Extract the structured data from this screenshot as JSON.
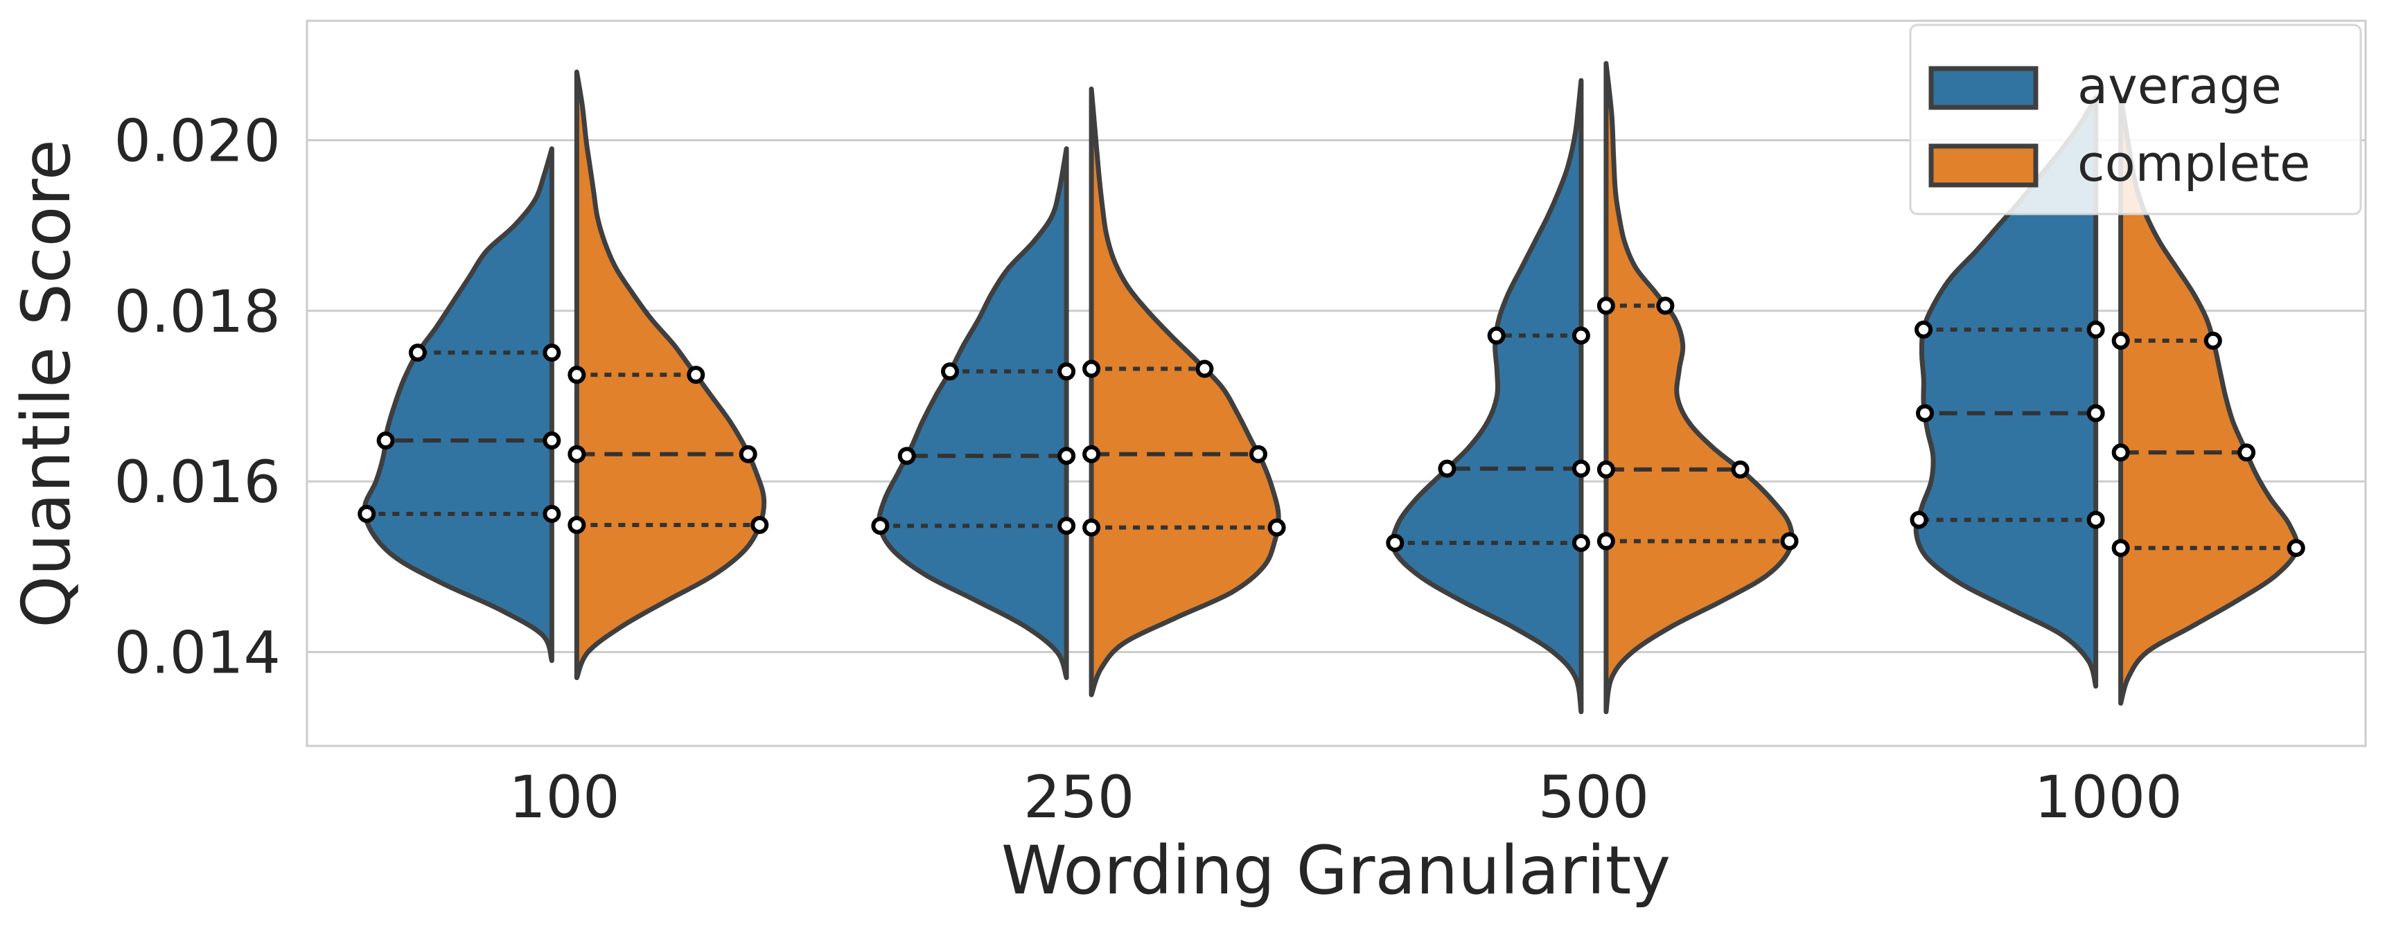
{
  "chart_data": {
    "type": "violin",
    "title": "",
    "xlabel": "Wording Granularity",
    "ylabel": "Quantile Score",
    "categories": [
      "100",
      "250",
      "500",
      "1000"
    ],
    "ylim": [
      0.0129,
      0.0214
    ],
    "yticks": [
      {
        "value": 0.014,
        "label": "0.014"
      },
      {
        "value": 0.016,
        "label": "0.016"
      },
      {
        "value": 0.018,
        "label": "0.018"
      },
      {
        "value": 0.02,
        "label": "0.020"
      }
    ],
    "grid": "horizontal",
    "legend": {
      "position": "top-right"
    },
    "series": [
      {
        "name": "average",
        "color": "#3274a1",
        "violins": [
          {
            "min": 0.0139,
            "max": 0.0199,
            "q1": 0.01562,
            "median": 0.01648,
            "q3": 0.01751,
            "profile": [
              [
                0.0139,
                0.0
              ],
              [
                0.0142,
                0.05
              ],
              [
                0.0145,
                0.28
              ],
              [
                0.0148,
                0.58
              ],
              [
                0.0151,
                0.83
              ],
              [
                0.0154,
                0.96
              ],
              [
                0.0157,
                1.0
              ],
              [
                0.016,
                0.94
              ],
              [
                0.0163,
                0.9
              ],
              [
                0.0166,
                0.88
              ],
              [
                0.0169,
                0.84
              ],
              [
                0.0172,
                0.79
              ],
              [
                0.0175,
                0.72
              ],
              [
                0.0178,
                0.62
              ],
              [
                0.0181,
                0.53
              ],
              [
                0.0184,
                0.44
              ],
              [
                0.0187,
                0.35
              ],
              [
                0.019,
                0.2
              ],
              [
                0.0193,
                0.09
              ],
              [
                0.0196,
                0.04
              ],
              [
                0.0199,
                0.0
              ]
            ]
          },
          {
            "min": 0.0137,
            "max": 0.0199,
            "q1": 0.01548,
            "median": 0.0163,
            "q3": 0.01729,
            "profile": [
              [
                0.0137,
                0.0
              ],
              [
                0.014,
                0.05
              ],
              [
                0.0143,
                0.22
              ],
              [
                0.0146,
                0.48
              ],
              [
                0.0149,
                0.75
              ],
              [
                0.0152,
                0.93
              ],
              [
                0.0155,
                1.0
              ],
              [
                0.0158,
                0.97
              ],
              [
                0.0161,
                0.9
              ],
              [
                0.0164,
                0.83
              ],
              [
                0.0167,
                0.77
              ],
              [
                0.017,
                0.7
              ],
              [
                0.0173,
                0.62
              ],
              [
                0.0176,
                0.55
              ],
              [
                0.0179,
                0.47
              ],
              [
                0.0182,
                0.4
              ],
              [
                0.0185,
                0.31
              ],
              [
                0.0188,
                0.18
              ],
              [
                0.0191,
                0.08
              ],
              [
                0.0194,
                0.04
              ],
              [
                0.0199,
                0.0
              ]
            ]
          },
          {
            "min": 0.0133,
            "max": 0.0207,
            "q1": 0.01528,
            "median": 0.01615,
            "q3": 0.01771,
            "profile": [
              [
                0.0133,
                0.0
              ],
              [
                0.0137,
                0.03
              ],
              [
                0.014,
                0.15
              ],
              [
                0.0143,
                0.37
              ],
              [
                0.0146,
                0.64
              ],
              [
                0.0149,
                0.87
              ],
              [
                0.0152,
                1.0
              ],
              [
                0.0155,
                0.98
              ],
              [
                0.0158,
                0.88
              ],
              [
                0.0161,
                0.74
              ],
              [
                0.0164,
                0.6
              ],
              [
                0.0167,
                0.5
              ],
              [
                0.017,
                0.45
              ],
              [
                0.0173,
                0.45
              ],
              [
                0.0176,
                0.46
              ],
              [
                0.0179,
                0.44
              ],
              [
                0.0182,
                0.39
              ],
              [
                0.0185,
                0.32
              ],
              [
                0.0188,
                0.25
              ],
              [
                0.0191,
                0.18
              ],
              [
                0.0194,
                0.12
              ],
              [
                0.0197,
                0.07
              ],
              [
                0.0201,
                0.03
              ],
              [
                0.0207,
                0.0
              ]
            ]
          },
          {
            "min": 0.0136,
            "max": 0.0205,
            "q1": 0.01555,
            "median": 0.0168,
            "q3": 0.01778,
            "profile": [
              [
                0.0136,
                0.0
              ],
              [
                0.0139,
                0.04
              ],
              [
                0.0142,
                0.18
              ],
              [
                0.0145,
                0.45
              ],
              [
                0.0148,
                0.72
              ],
              [
                0.0151,
                0.9
              ],
              [
                0.0154,
                0.96
              ],
              [
                0.0157,
                0.93
              ],
              [
                0.016,
                0.88
              ],
              [
                0.0163,
                0.87
              ],
              [
                0.0166,
                0.9
              ],
              [
                0.0169,
                0.92
              ],
              [
                0.0172,
                0.92
              ],
              [
                0.0175,
                0.93
              ],
              [
                0.0178,
                0.92
              ],
              [
                0.0181,
                0.86
              ],
              [
                0.0184,
                0.77
              ],
              [
                0.0187,
                0.64
              ],
              [
                0.019,
                0.52
              ],
              [
                0.0193,
                0.4
              ],
              [
                0.0196,
                0.29
              ],
              [
                0.0199,
                0.18
              ],
              [
                0.0202,
                0.08
              ],
              [
                0.0205,
                0.0
              ]
            ]
          }
        ]
      },
      {
        "name": "complete",
        "color": "#e1812c",
        "violins": [
          {
            "min": 0.0137,
            "max": 0.0208,
            "q1": 0.01549,
            "median": 0.01632,
            "q3": 0.01725,
            "profile": [
              [
                0.0137,
                0.0
              ],
              [
                0.014,
                0.06
              ],
              [
                0.0143,
                0.24
              ],
              [
                0.0146,
                0.48
              ],
              [
                0.0149,
                0.73
              ],
              [
                0.0152,
                0.9
              ],
              [
                0.0155,
                0.98
              ],
              [
                0.0158,
                1.0
              ],
              [
                0.0161,
                0.96
              ],
              [
                0.0164,
                0.9
              ],
              [
                0.0167,
                0.82
              ],
              [
                0.017,
                0.72
              ],
              [
                0.0173,
                0.62
              ],
              [
                0.0176,
                0.52
              ],
              [
                0.0179,
                0.4
              ],
              [
                0.0182,
                0.3
              ],
              [
                0.0185,
                0.21
              ],
              [
                0.0188,
                0.15
              ],
              [
                0.0191,
                0.11
              ],
              [
                0.0194,
                0.09
              ],
              [
                0.0197,
                0.07
              ],
              [
                0.02,
                0.05
              ],
              [
                0.0204,
                0.03
              ],
              [
                0.0208,
                0.0
              ]
            ]
          },
          {
            "min": 0.0135,
            "max": 0.0206,
            "q1": 0.01546,
            "median": 0.01632,
            "q3": 0.01732,
            "profile": [
              [
                0.0135,
                0.0
              ],
              [
                0.0138,
                0.05
              ],
              [
                0.0141,
                0.17
              ],
              [
                0.0144,
                0.45
              ],
              [
                0.0147,
                0.75
              ],
              [
                0.015,
                0.92
              ],
              [
                0.0153,
                0.98
              ],
              [
                0.0156,
                1.0
              ],
              [
                0.0159,
                0.97
              ],
              [
                0.0162,
                0.92
              ],
              [
                0.0165,
                0.85
              ],
              [
                0.0168,
                0.78
              ],
              [
                0.0171,
                0.7
              ],
              [
                0.0174,
                0.57
              ],
              [
                0.0177,
                0.43
              ],
              [
                0.018,
                0.3
              ],
              [
                0.0183,
                0.19
              ],
              [
                0.0186,
                0.12
              ],
              [
                0.0189,
                0.08
              ],
              [
                0.0192,
                0.06
              ],
              [
                0.0196,
                0.04
              ],
              [
                0.0201,
                0.02
              ],
              [
                0.0206,
                0.0
              ]
            ]
          },
          {
            "min": 0.0133,
            "max": 0.0209,
            "q1": 0.0153,
            "median": 0.01614,
            "q3": 0.01806,
            "profile": [
              [
                0.0133,
                0.0
              ],
              [
                0.0137,
                0.03
              ],
              [
                0.014,
                0.14
              ],
              [
                0.0143,
                0.35
              ],
              [
                0.0146,
                0.62
              ],
              [
                0.0149,
                0.86
              ],
              [
                0.0152,
                0.98
              ],
              [
                0.0155,
                0.98
              ],
              [
                0.0158,
                0.88
              ],
              [
                0.0161,
                0.74
              ],
              [
                0.0164,
                0.57
              ],
              [
                0.0167,
                0.44
              ],
              [
                0.017,
                0.38
              ],
              [
                0.0173,
                0.39
              ],
              [
                0.0176,
                0.41
              ],
              [
                0.0179,
                0.37
              ],
              [
                0.0182,
                0.27
              ],
              [
                0.0185,
                0.16
              ],
              [
                0.0188,
                0.1
              ],
              [
                0.0191,
                0.07
              ],
              [
                0.0194,
                0.05
              ],
              [
                0.0198,
                0.04
              ],
              [
                0.0203,
                0.03
              ],
              [
                0.0209,
                0.0
              ]
            ]
          },
          {
            "min": 0.0134,
            "max": 0.0205,
            "q1": 0.01522,
            "median": 0.01634,
            "q3": 0.01765,
            "profile": [
              [
                0.0134,
                0.0
              ],
              [
                0.0137,
                0.04
              ],
              [
                0.014,
                0.14
              ],
              [
                0.0143,
                0.38
              ],
              [
                0.0146,
                0.62
              ],
              [
                0.0149,
                0.83
              ],
              [
                0.0152,
                0.94
              ],
              [
                0.0155,
                0.9
              ],
              [
                0.0158,
                0.8
              ],
              [
                0.0161,
                0.72
              ],
              [
                0.0164,
                0.66
              ],
              [
                0.0167,
                0.6
              ],
              [
                0.017,
                0.56
              ],
              [
                0.0173,
                0.53
              ],
              [
                0.0176,
                0.5
              ],
              [
                0.0179,
                0.46
              ],
              [
                0.0182,
                0.39
              ],
              [
                0.0185,
                0.3
              ],
              [
                0.0188,
                0.21
              ],
              [
                0.0191,
                0.14
              ],
              [
                0.0194,
                0.09
              ],
              [
                0.0197,
                0.06
              ],
              [
                0.0201,
                0.03
              ],
              [
                0.0205,
                0.0
              ]
            ]
          }
        ]
      }
    ]
  }
}
